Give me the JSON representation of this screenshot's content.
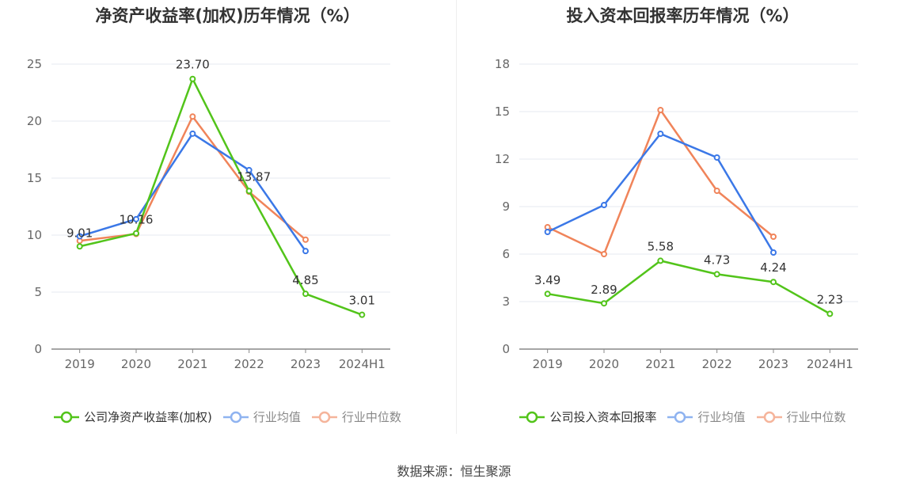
{
  "chart_data": [
    {
      "type": "line",
      "title": "净资产收益率(加权)历年情况（%）",
      "categories": [
        "2019",
        "2020",
        "2021",
        "2022",
        "2023",
        "2024H1"
      ],
      "ylim": [
        0,
        25
      ],
      "yticks": [
        0,
        5,
        10,
        15,
        20,
        25
      ],
      "grid": true,
      "legend": "bottom-center",
      "series": [
        {
          "name": "公司净资产收益率(加权)",
          "color": "#52c41a",
          "values": [
            9.01,
            10.16,
            23.7,
            13.87,
            4.85,
            3.01
          ],
          "labels": [
            "9.01",
            "10.16",
            "23.70",
            "13.87",
            "4.85",
            "3.01"
          ]
        },
        {
          "name": "行业均值",
          "color": "#3b78e7",
          "values": [
            9.9,
            11.4,
            18.9,
            15.7,
            8.6,
            null
          ]
        },
        {
          "name": "行业中位数",
          "color": "#f0845a",
          "values": [
            9.5,
            10.1,
            20.4,
            13.8,
            9.6,
            null
          ]
        }
      ]
    },
    {
      "type": "line",
      "title": "投入资本回报率历年情况（%）",
      "categories": [
        "2019",
        "2020",
        "2021",
        "2022",
        "2023",
        "2024H1"
      ],
      "ylim": [
        0,
        18
      ],
      "yticks": [
        0,
        3,
        6,
        9,
        12,
        15,
        18
      ],
      "grid": true,
      "legend": "bottom-center",
      "series": [
        {
          "name": "公司投入资本回报率",
          "color": "#52c41a",
          "values": [
            3.49,
            2.89,
            5.58,
            4.73,
            4.24,
            2.23
          ],
          "labels": [
            "3.49",
            "2.89",
            "5.58",
            "4.73",
            "4.24",
            "2.23"
          ]
        },
        {
          "name": "行业均值",
          "color": "#3b78e7",
          "values": [
            7.4,
            9.1,
            13.6,
            12.1,
            6.1,
            null
          ]
        },
        {
          "name": "行业中位数",
          "color": "#f0845a",
          "values": [
            7.7,
            6.0,
            15.1,
            10.0,
            7.1,
            null
          ]
        }
      ]
    }
  ],
  "legend_colors": {
    "company": "#52c41a",
    "industry_avg": "#8fb3f0",
    "industry_median": "#f5b49b"
  },
  "footer": {
    "source": "数据来源：恒生聚源"
  }
}
